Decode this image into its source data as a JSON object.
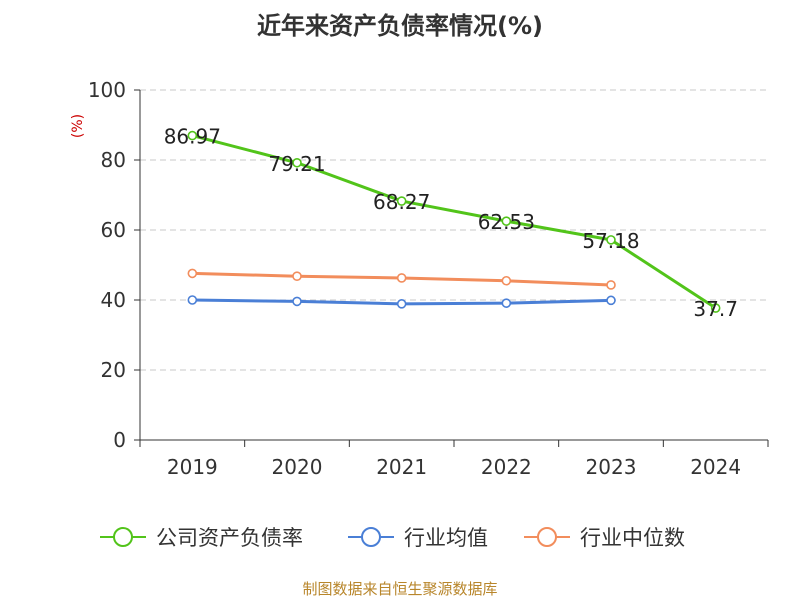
{
  "chart_data": {
    "type": "line",
    "title": "近年来资产负债率情况(%)",
    "ylabel": "(%)",
    "xlabel": "",
    "categories": [
      "2019",
      "2020",
      "2021",
      "2022",
      "2023",
      "2024"
    ],
    "yticks": [
      "0",
      "20",
      "40",
      "60",
      "80",
      "100"
    ],
    "ylim": [
      0,
      100
    ],
    "grid": true,
    "legend_position": "bottom",
    "series": [
      {
        "name": "公司资产负债率",
        "color": "#52c41a",
        "values": [
          86.97,
          79.21,
          68.27,
          62.53,
          57.18,
          37.7
        ],
        "labels": [
          "86.97",
          "79.21",
          "68.27",
          "62.53",
          "57.18",
          "37.7"
        ]
      },
      {
        "name": "行业均值",
        "color": "#4a7fd6",
        "values": [
          40.0,
          39.6,
          38.9,
          39.1,
          39.9,
          null
        ]
      },
      {
        "name": "行业中位数",
        "color": "#f28d5c",
        "values": [
          47.6,
          46.8,
          46.3,
          45.5,
          44.3,
          null
        ]
      }
    ]
  },
  "footer": "制图数据来自恒生聚源数据库"
}
